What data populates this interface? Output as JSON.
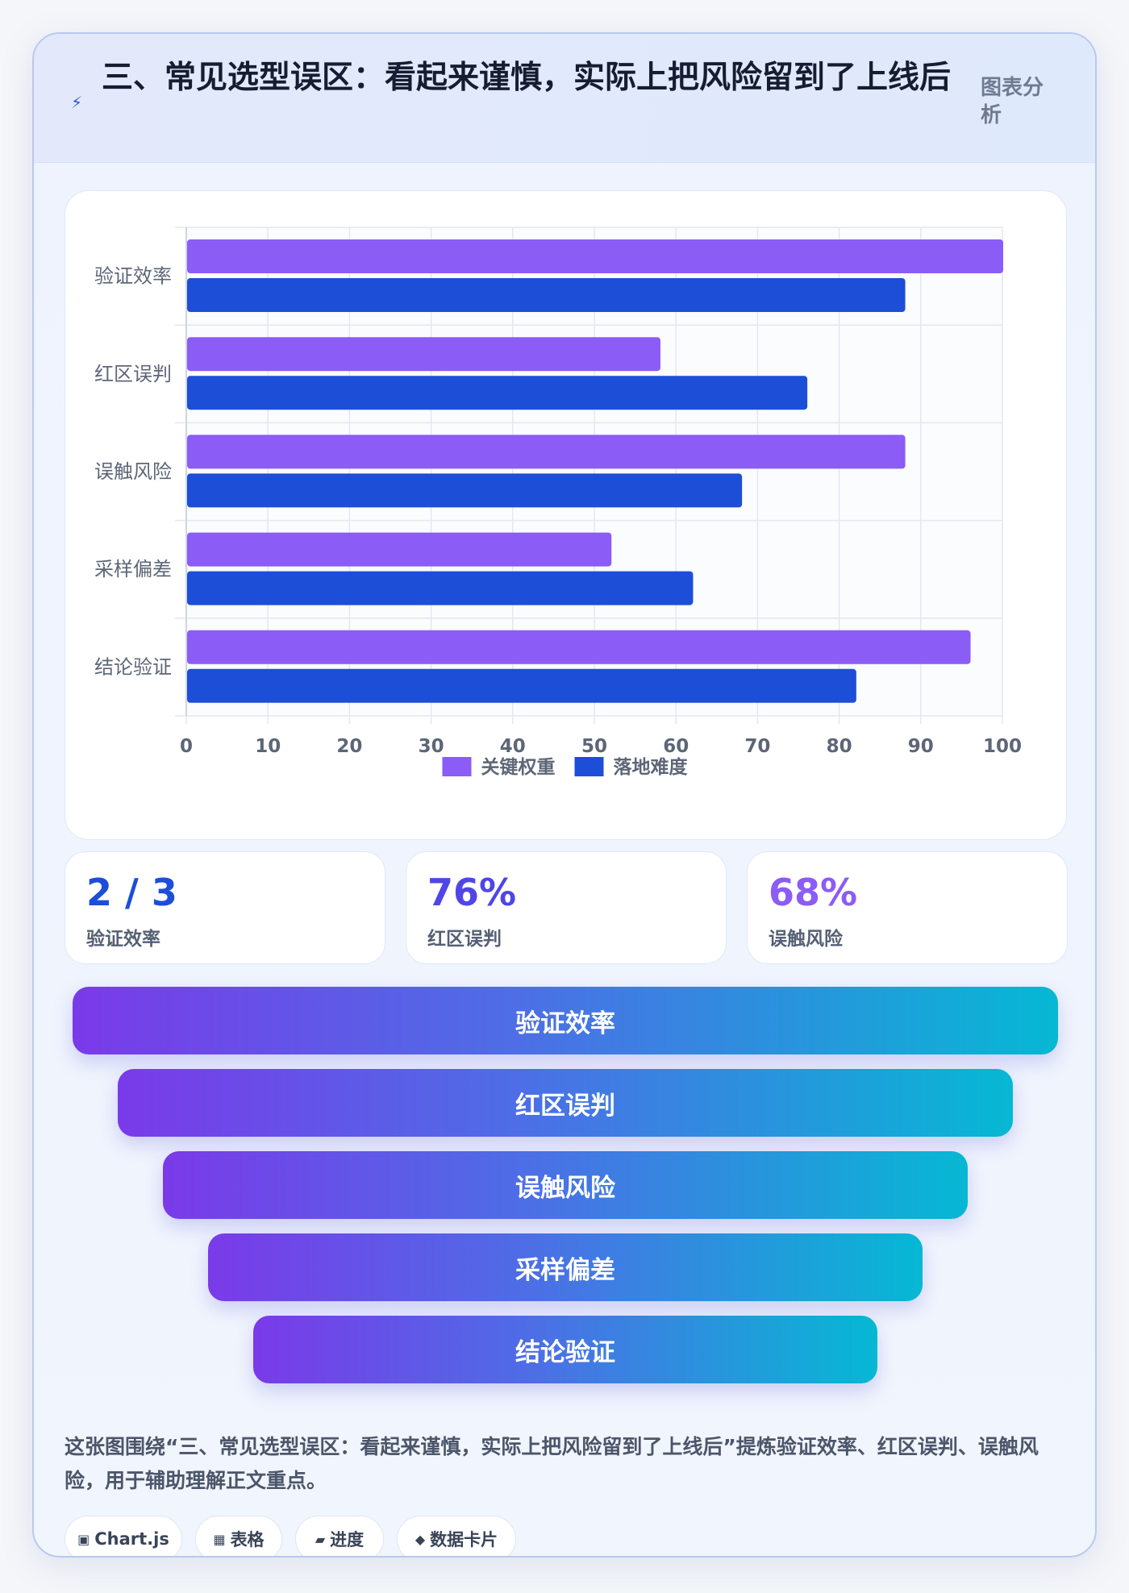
{
  "header": {
    "title": "三、常见选型误区：看起来谨慎，实际上把风险留到了上线后",
    "tag": "图表分析"
  },
  "chart_data": {
    "type": "bar",
    "orientation": "horizontal",
    "categories": [
      "验证效率",
      "红区误判",
      "误触风险",
      "采样偏差",
      "结论验证"
    ],
    "series": [
      {
        "name": "关键权重",
        "values": [
          100,
          58,
          88,
          52,
          96
        ],
        "color": "#8b5cf6"
      },
      {
        "name": "落地难度",
        "values": [
          88,
          76,
          68,
          62,
          82
        ],
        "color": "#1d4ed8"
      }
    ],
    "xlim": [
      0,
      100
    ],
    "xticks": [
      0,
      10,
      20,
      30,
      40,
      50,
      60,
      70,
      80,
      90,
      100
    ],
    "grid": true,
    "legend": "bottom"
  },
  "stats": [
    {
      "value": "2 / 3",
      "label": "验证效率",
      "color": "#1d4ed8"
    },
    {
      "value": "76%",
      "label": "红区误判",
      "color": "#4f46e5"
    },
    {
      "value": "68%",
      "label": "误触风险",
      "color": "#8b5cf6"
    }
  ],
  "funnel": [
    "验证效率",
    "红区误判",
    "误触风险",
    "采样偏差",
    "结论验证"
  ],
  "summary": "这张图围绕“三、常见选型误区：看起来谨慎，实际上把风险留到了上线后”提炼验证效率、红区误判、误触风险，用于辅助理解正文重点。",
  "chips": [
    {
      "icon": "▣",
      "label": "Chart.js"
    },
    {
      "icon": "▦",
      "label": "表格"
    },
    {
      "icon": "▰",
      "label": "进度"
    },
    {
      "icon": "◆",
      "label": "数据卡片"
    }
  ]
}
